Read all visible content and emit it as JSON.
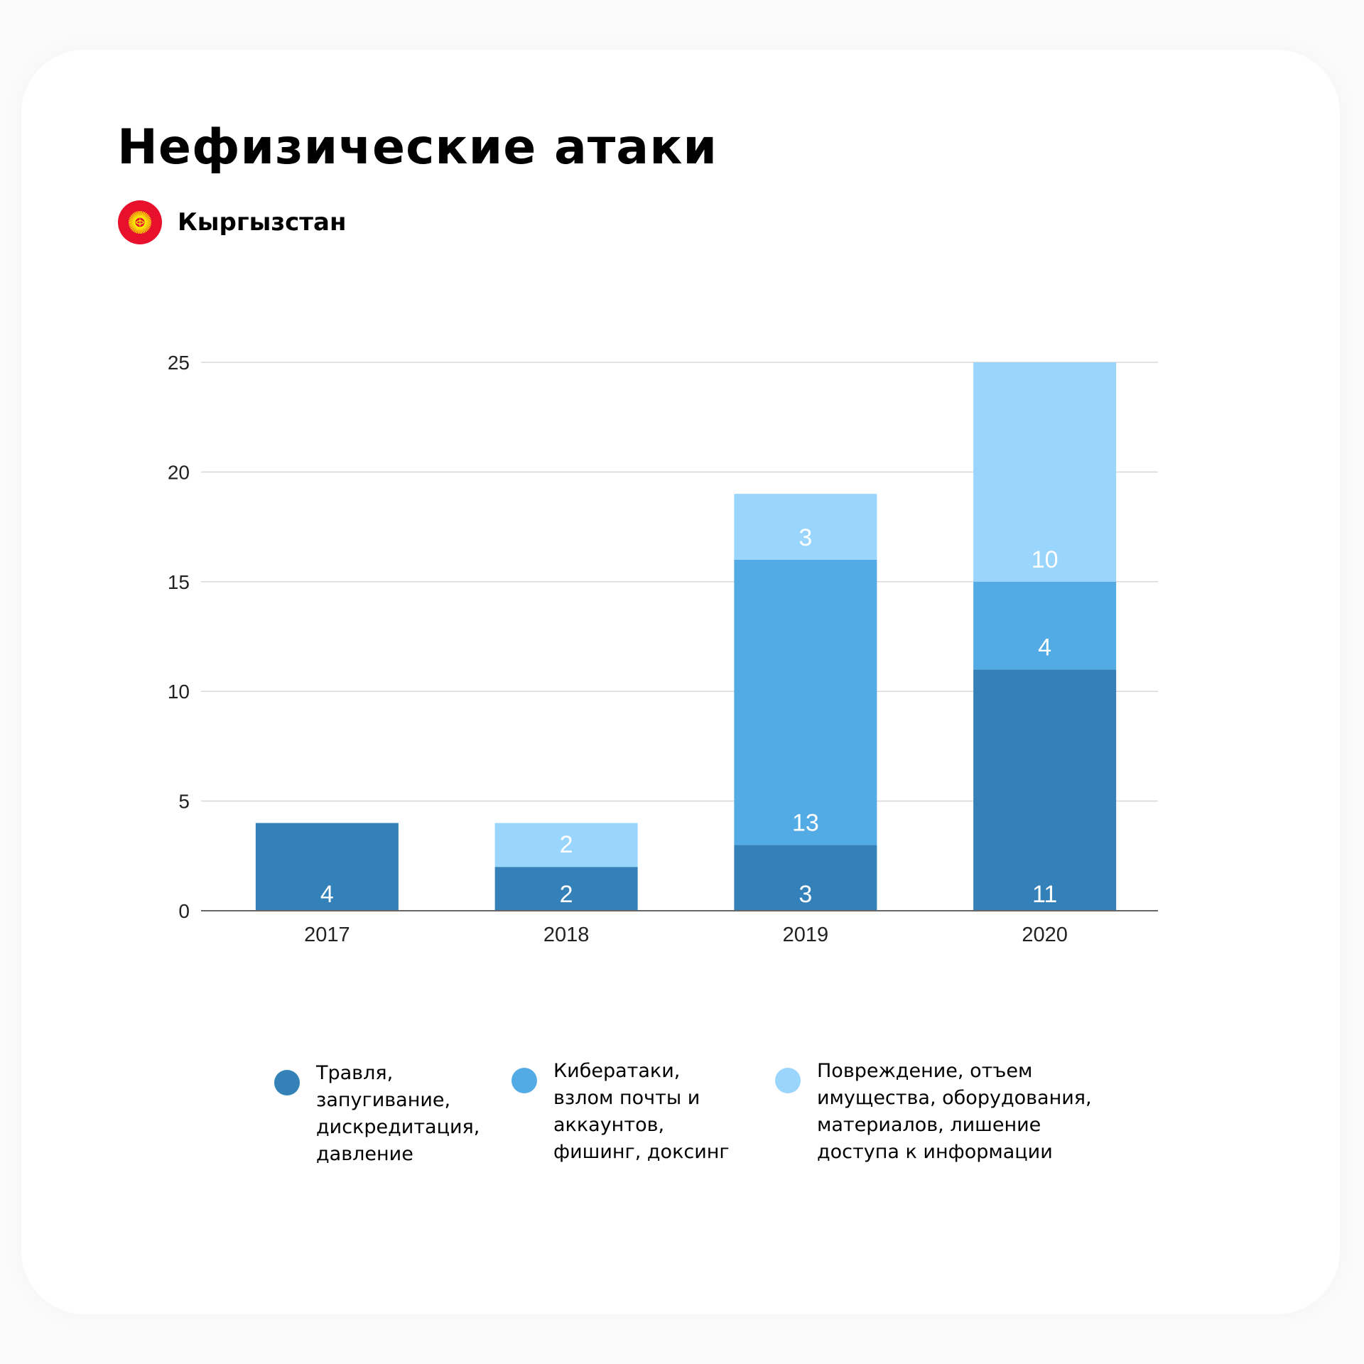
{
  "title": "Нефизические атаки",
  "country": {
    "name": "Кыргызстан",
    "flag_icon": "kyrgyzstan-flag-icon",
    "flag_color": "#e8112d",
    "sun_color": "#ffef00"
  },
  "colors": {
    "series_1": "#3381b8",
    "series_2": "#53abe6",
    "series_3": "#9ad5fe",
    "grid": "#d9d9d9",
    "axis": "#666666"
  },
  "legend": [
    {
      "label": "Травля,\nзапугивание,\nдискредитация,\nдавление"
    },
    {
      "label": "Кибератаки,\nвзлом почты и\nаккаунтов,\nфишинг, доксинг"
    },
    {
      "label": "Повреждение, отъем\nимущества, оборудования,\nматериалов, лишение\nдоступа к информации"
    }
  ],
  "chart_data": {
    "type": "bar",
    "stacked": true,
    "categories": [
      "2017",
      "2018",
      "2019",
      "2020"
    ],
    "series": [
      {
        "name": "Травля, запугивание, дискредитация, давление",
        "values": [
          4,
          2,
          3,
          11
        ],
        "labels": [
          "4",
          "2",
          "3",
          "11"
        ]
      },
      {
        "name": "Кибератаки, взлом почты и аккаунтов, фишинг, доксинг",
        "values": [
          0,
          0,
          13,
          4
        ],
        "labels": [
          "",
          "",
          "13",
          "4"
        ]
      },
      {
        "name": "Повреждение, отъем имущества, оборудования, материалов, лишение доступа к информации",
        "values": [
          0,
          2,
          3,
          10
        ],
        "labels": [
          "",
          "2",
          "3",
          "10"
        ]
      }
    ],
    "ylim": [
      0,
      25
    ],
    "yticks": [
      0,
      5,
      10,
      15,
      20,
      25
    ],
    "ytick_labels": [
      "0",
      "5",
      "10",
      "15",
      "20",
      "25"
    ],
    "grid": true,
    "legend_position": "bottom"
  }
}
